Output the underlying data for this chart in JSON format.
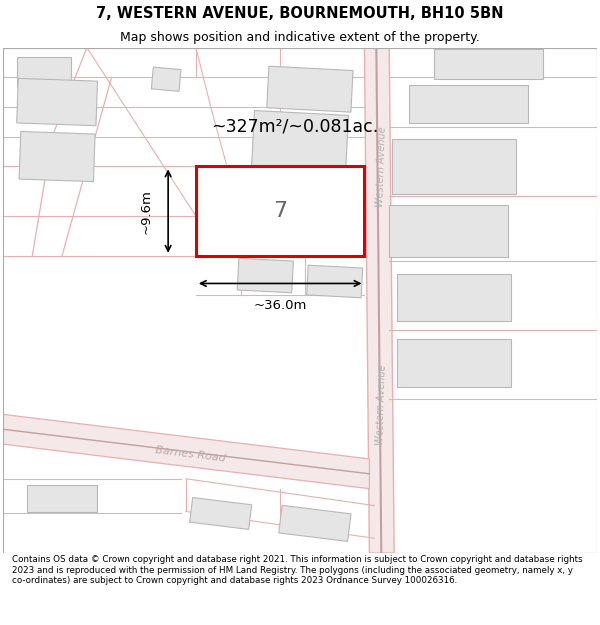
{
  "title": "7, WESTERN AVENUE, BOURNEMOUTH, BH10 5BN",
  "subtitle": "Map shows position and indicative extent of the property.",
  "footer": "Contains OS data © Crown copyright and database right 2021. This information is subject to Crown copyright and database rights 2023 and is reproduced with the permission of HM Land Registry. The polygons (including the associated geometry, namely x, y co-ordinates) are subject to Crown copyright and database rights 2023 Ordnance Survey 100026316.",
  "bg_color": "#ffffff",
  "map_bg": "#ffffff",
  "road_outline": "#e8b0b0",
  "road_fill": "#f5e8e8",
  "building_fill": "#e5e5e5",
  "building_edge": "#b8b8b8",
  "highlight_fill": "#ffffff",
  "highlight_edge": "#dd0000",
  "dim_color": "#000000",
  "area_text": "~327m²/~0.081ac.",
  "width_text": "~36.0m",
  "height_text": "~9.6m",
  "number_text": "7",
  "wa_label": "Western Avenue",
  "br_label": "Barnes Road"
}
